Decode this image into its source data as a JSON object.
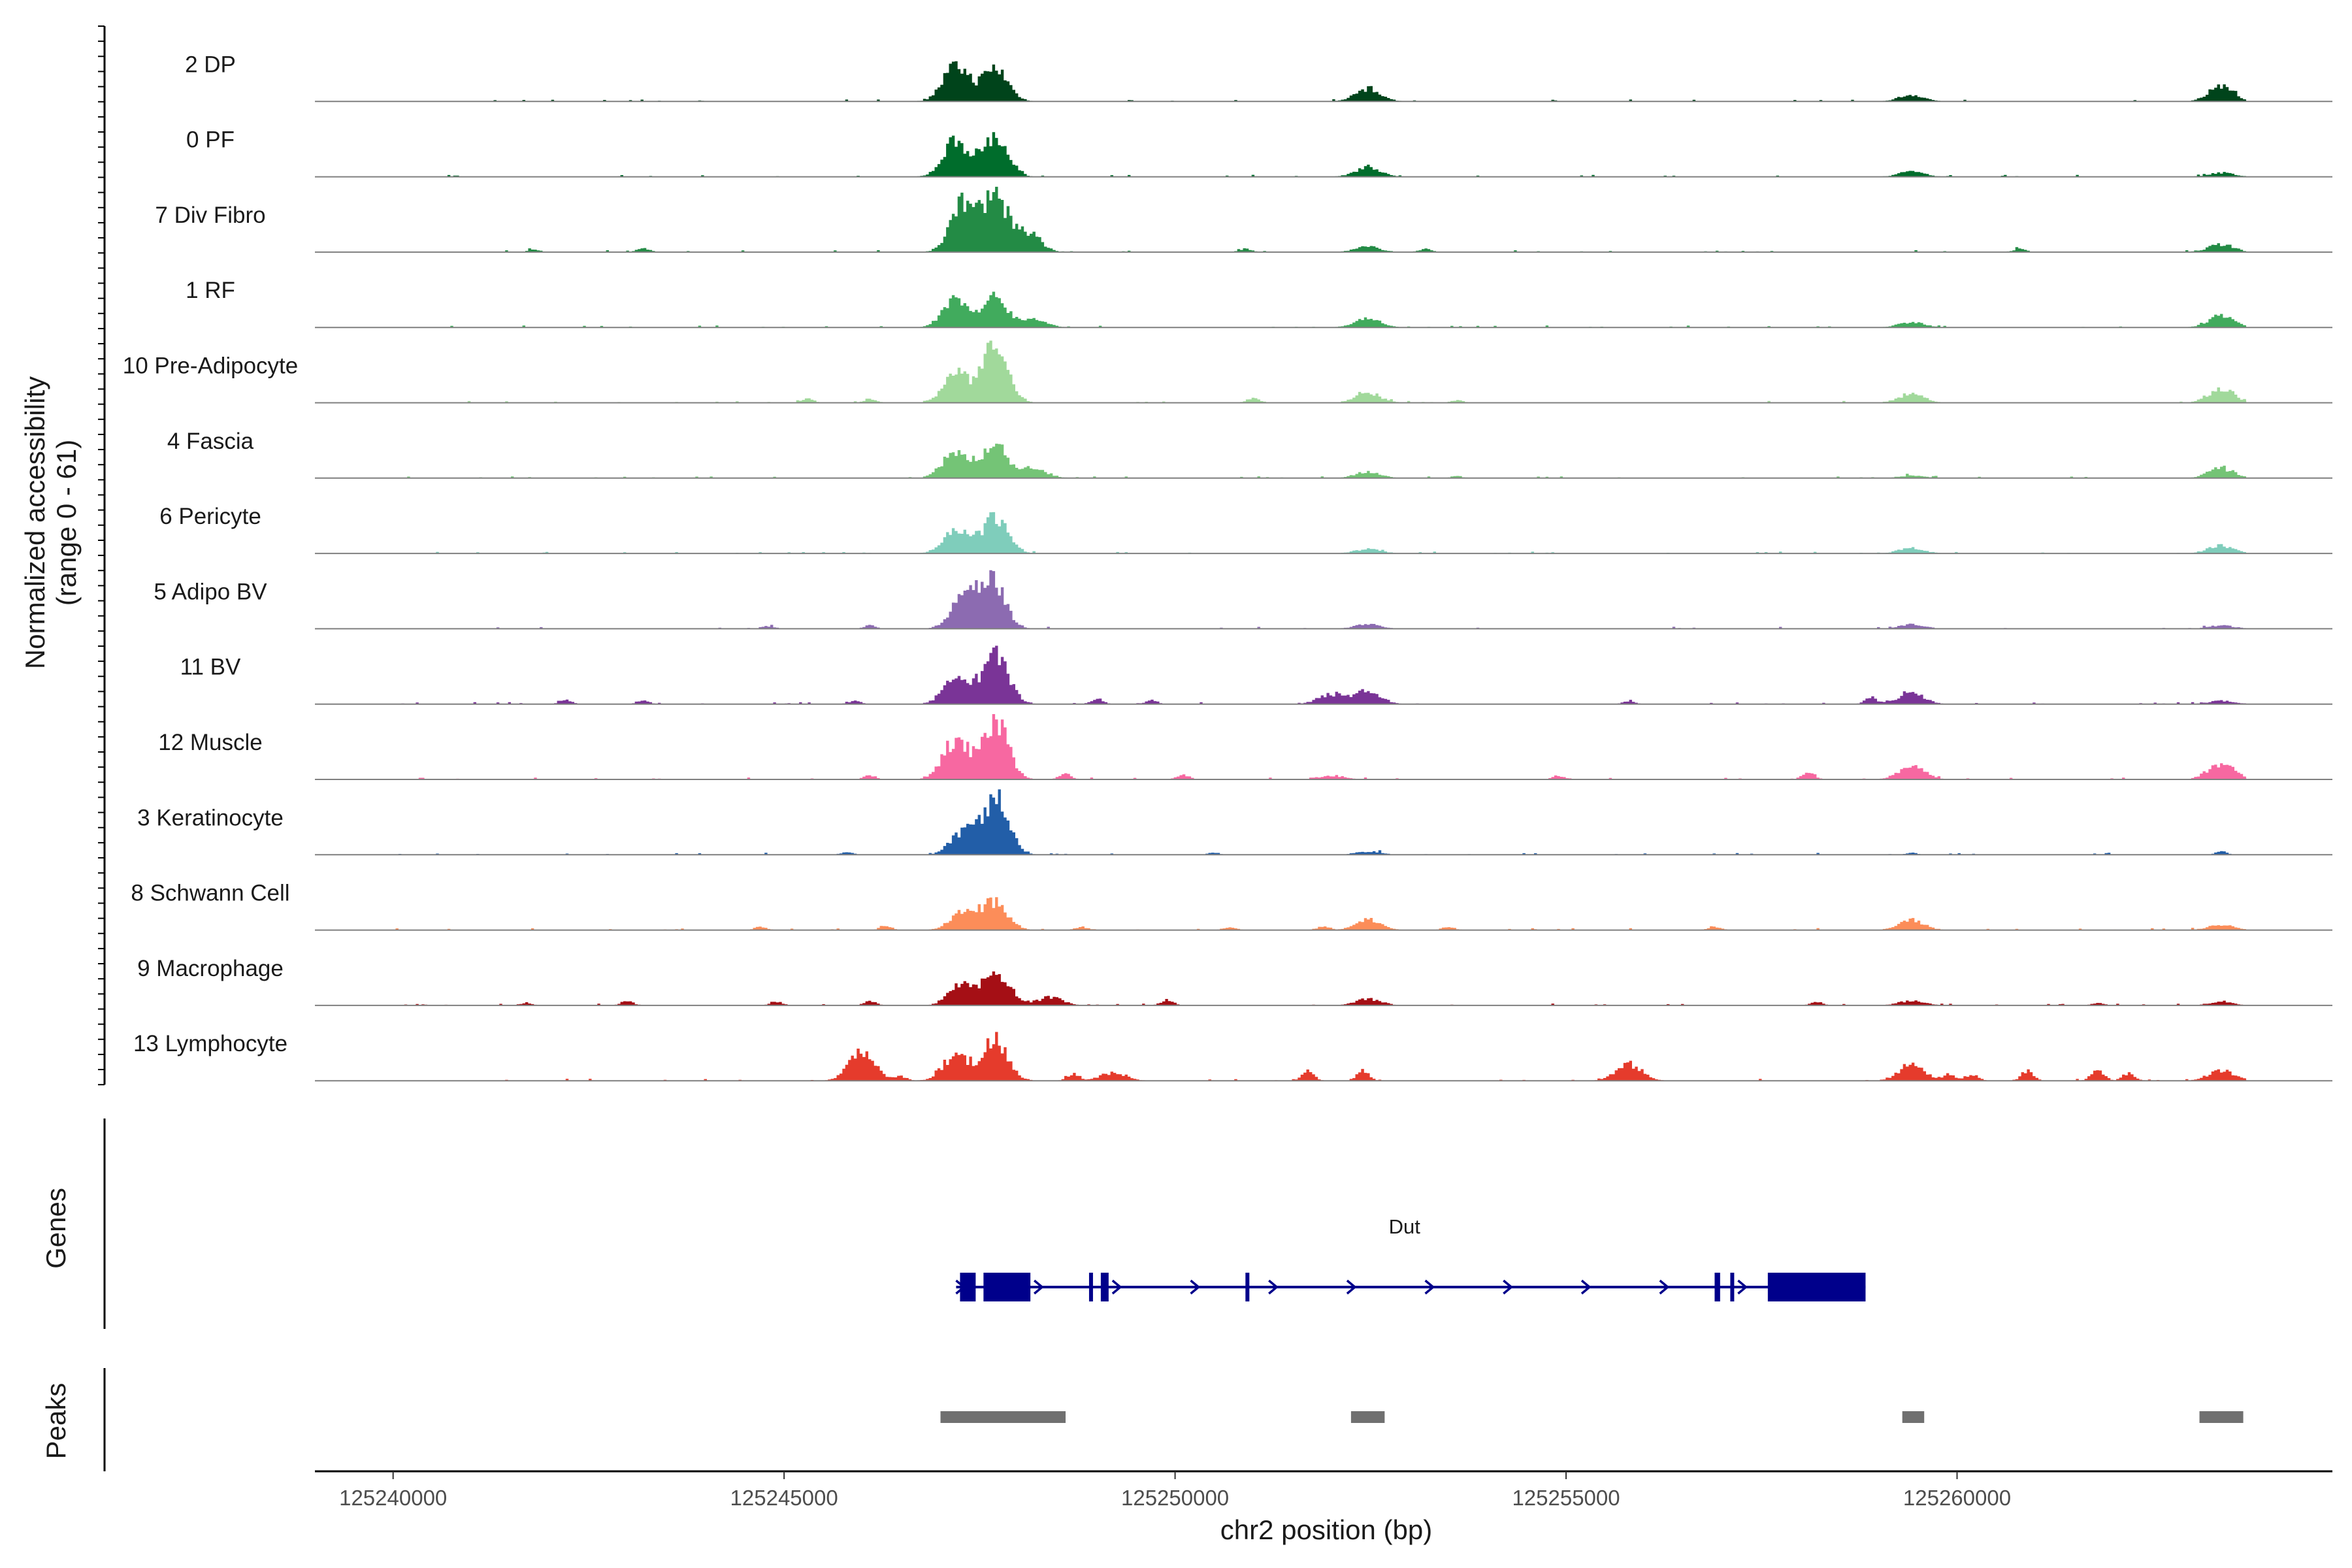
{
  "chart_data": {
    "type": "area",
    "title": "",
    "ylabel": "Normalized accessibility",
    "ylabel_range": "(range 0 - 61)",
    "ylim": [
      0,
      61
    ],
    "xlabel": "chr2 position (bp)",
    "xlim": [
      125239000,
      125264800
    ],
    "xticks": [
      125240000,
      125245000,
      125250000,
      125255000,
      125260000
    ],
    "xtick_labels": [
      "125240000",
      "125245000",
      "125250000",
      "125255000",
      "125260000"
    ],
    "peak_positions": [
      125247300,
      125247650,
      125248000,
      125252470,
      125259420,
      125263380
    ],
    "tracks": [
      {
        "name": "2 DP",
        "color": "#00441b",
        "peaks": [
          [
            125247200,
            0.55
          ],
          [
            125247700,
            0.5
          ],
          [
            125252470,
            0.2
          ],
          [
            125259420,
            0.1
          ],
          [
            125263380,
            0.22
          ]
        ],
        "extra": []
      },
      {
        "name": "0 PF",
        "color": "#006d2c",
        "peaks": [
          [
            125247200,
            0.55
          ],
          [
            125247700,
            0.6
          ],
          [
            125252470,
            0.15
          ],
          [
            125259420,
            0.08
          ],
          [
            125263380,
            0.06
          ]
        ],
        "extra": []
      },
      {
        "name": "7 Div Fibro",
        "color": "#238b45",
        "peaks": [
          [
            125247300,
            0.75
          ],
          [
            125247700,
            0.8
          ],
          [
            125248100,
            0.3
          ],
          [
            125252470,
            0.08
          ],
          [
            125263380,
            0.12
          ]
        ],
        "extra": [
          [
            125241800,
            0.04
          ],
          [
            125243200,
            0.06
          ],
          [
            125250900,
            0.05
          ],
          [
            125253200,
            0.05
          ],
          [
            125260800,
            0.05
          ]
        ]
      },
      {
        "name": "1 RF",
        "color": "#41ab5d",
        "peaks": [
          [
            125247200,
            0.45
          ],
          [
            125247700,
            0.45
          ],
          [
            125248200,
            0.12
          ],
          [
            125252470,
            0.14
          ],
          [
            125259420,
            0.08
          ],
          [
            125263380,
            0.18
          ]
        ],
        "extra": []
      },
      {
        "name": "10 Pre-Adipocyte",
        "color": "#a1d99b",
        "peaks": [
          [
            125247200,
            0.45
          ],
          [
            125247700,
            0.85
          ],
          [
            125252470,
            0.15
          ],
          [
            125259420,
            0.14
          ],
          [
            125263380,
            0.22
          ]
        ],
        "extra": [
          [
            125245300,
            0.06
          ],
          [
            125246100,
            0.06
          ],
          [
            125251000,
            0.08
          ],
          [
            125253600,
            0.04
          ]
        ]
      },
      {
        "name": "4 Fascia",
        "color": "#74c476",
        "peaks": [
          [
            125247200,
            0.42
          ],
          [
            125247700,
            0.5
          ],
          [
            125248200,
            0.15
          ],
          [
            125252470,
            0.1
          ],
          [
            125259420,
            0.04
          ],
          [
            125263380,
            0.15
          ]
        ],
        "extra": [
          [
            125253600,
            0.03
          ]
        ]
      },
      {
        "name": "6 Pericyte",
        "color": "#7fcdbb",
        "peaks": [
          [
            125247200,
            0.35
          ],
          [
            125247700,
            0.55
          ],
          [
            125252470,
            0.07
          ],
          [
            125259420,
            0.08
          ],
          [
            125263380,
            0.12
          ]
        ],
        "extra": []
      },
      {
        "name": "5 Adipo BV",
        "color": "#8c6bb1",
        "peaks": [
          [
            125247300,
            0.45
          ],
          [
            125247650,
            0.75
          ],
          [
            125252470,
            0.07
          ],
          [
            125259420,
            0.07
          ],
          [
            125263380,
            0.05
          ]
        ],
        "extra": [
          [
            125244800,
            0.04
          ],
          [
            125246100,
            0.05
          ]
        ]
      },
      {
        "name": "11 BV",
        "color": "#7a3497",
        "peaks": [
          [
            125247200,
            0.38
          ],
          [
            125247700,
            0.8
          ],
          [
            125252000,
            0.15
          ],
          [
            125252470,
            0.2
          ],
          [
            125259420,
            0.18
          ],
          [
            125263380,
            0.05
          ]
        ],
        "extra": [
          [
            125242200,
            0.06
          ],
          [
            125243200,
            0.05
          ],
          [
            125245900,
            0.05
          ],
          [
            125249000,
            0.08
          ],
          [
            125249700,
            0.06
          ],
          [
            125255800,
            0.04
          ],
          [
            125258900,
            0.1
          ]
        ]
      },
      {
        "name": "12 Muscle",
        "color": "#f768a1",
        "peaks": [
          [
            125247200,
            0.6
          ],
          [
            125247700,
            0.9
          ],
          [
            125252000,
            0.06
          ],
          [
            125259420,
            0.2
          ],
          [
            125263380,
            0.25
          ]
        ],
        "extra": [
          [
            125246100,
            0.06
          ],
          [
            125248600,
            0.08
          ],
          [
            125250100,
            0.07
          ],
          [
            125254900,
            0.06
          ],
          [
            125258100,
            0.12
          ]
        ]
      },
      {
        "name": "3 Keratinocyte",
        "color": "#225ea8",
        "peaks": [
          [
            125247300,
            0.35
          ],
          [
            125247700,
            0.85
          ],
          [
            125252470,
            0.05
          ]
        ],
        "extra": [
          [
            125245800,
            0.04
          ],
          [
            125250500,
            0.03
          ],
          [
            125259420,
            0.03
          ],
          [
            125263380,
            0.05
          ]
        ]
      },
      {
        "name": "8 Schwann Cell",
        "color": "#fc8d59",
        "peaks": [
          [
            125247300,
            0.3
          ],
          [
            125247700,
            0.4
          ],
          [
            125252470,
            0.16
          ],
          [
            125259420,
            0.15
          ],
          [
            125263380,
            0.08
          ]
        ],
        "extra": [
          [
            125244700,
            0.05
          ],
          [
            125246300,
            0.06
          ],
          [
            125248800,
            0.05
          ],
          [
            125250700,
            0.05
          ],
          [
            125251900,
            0.06
          ],
          [
            125253500,
            0.05
          ],
          [
            125256900,
            0.05
          ]
        ]
      },
      {
        "name": "9 Macrophage",
        "color": "#a50f15",
        "peaks": [
          [
            125247300,
            0.38
          ],
          [
            125247750,
            0.45
          ],
          [
            125248400,
            0.12
          ],
          [
            125252470,
            0.1
          ],
          [
            125259420,
            0.07
          ],
          [
            125263380,
            0.05
          ]
        ],
        "extra": [
          [
            125241700,
            0.04
          ],
          [
            125243000,
            0.06
          ],
          [
            125244900,
            0.06
          ],
          [
            125246100,
            0.06
          ],
          [
            125249900,
            0.08
          ],
          [
            125258200,
            0.05
          ],
          [
            125261800,
            0.04
          ]
        ]
      },
      {
        "name": "13 Lymphocyte",
        "color": "#e53b2c",
        "peaks": [
          [
            125246000,
            0.45
          ],
          [
            125247200,
            0.4
          ],
          [
            125247700,
            0.6
          ],
          [
            125249200,
            0.12
          ],
          [
            125255800,
            0.25
          ],
          [
            125259420,
            0.25
          ],
          [
            125263380,
            0.16
          ]
        ],
        "extra": [
          [
            125248700,
            0.1
          ],
          [
            125251700,
            0.15
          ],
          [
            125252400,
            0.15
          ],
          [
            125259900,
            0.1
          ],
          [
            125260200,
            0.1
          ],
          [
            125260900,
            0.15
          ],
          [
            125261800,
            0.18
          ],
          [
            125262200,
            0.12
          ],
          [
            125246500,
            0.06
          ]
        ]
      }
    ],
    "genes": {
      "track_label": "Genes",
      "gene_name": "Dut",
      "color": "#00008b",
      "start": 125247200,
      "end": 125258500,
      "strand": "+",
      "exons": [
        [
          125247250,
          125247450
        ],
        [
          125247550,
          125248150
        ],
        [
          125248900,
          125248950
        ],
        [
          125249050,
          125249150
        ],
        [
          125250900,
          125250950
        ],
        [
          125256900,
          125256970
        ],
        [
          125257100,
          125257150
        ],
        [
          125257580,
          125258830
        ]
      ]
    },
    "peaks": {
      "track_label": "Peaks",
      "color": "#707070",
      "regions": [
        [
          125247000,
          125248600
        ],
        [
          125252250,
          125252680
        ],
        [
          125259300,
          125259580
        ],
        [
          125263100,
          125263660
        ]
      ]
    }
  }
}
